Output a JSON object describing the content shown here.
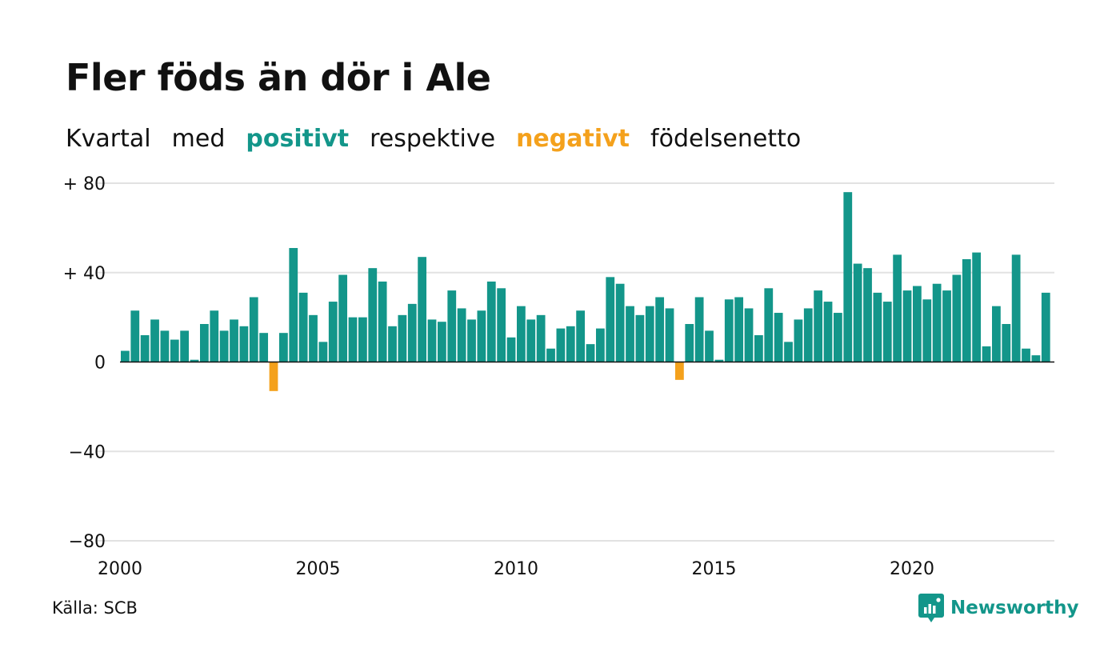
{
  "title": "Fler föds än dör i Ale",
  "subtitle": {
    "part1": "Kvartal",
    "part2": "med",
    "positive": "positivt",
    "part3": "respektive",
    "negative": "negativt",
    "part4": "födelsenetto"
  },
  "source": "Källa: SCB",
  "brand": {
    "name": "Newsworthy",
    "icon": "newsworthy-logo-icon"
  },
  "colors": {
    "positive": "#13968a",
    "negative": "#f4a11c",
    "grid": "#e2e2e2",
    "baseline": "#111111",
    "text": "#111111"
  },
  "chart_data": {
    "type": "bar",
    "x_start": 2000,
    "quarter_step": 0.25,
    "values": [
      5,
      23,
      12,
      19,
      14,
      10,
      14,
      1,
      17,
      23,
      14,
      19,
      16,
      29,
      13,
      -13,
      13,
      51,
      31,
      21,
      9,
      27,
      39,
      20,
      20,
      42,
      36,
      16,
      21,
      26,
      47,
      19,
      18,
      32,
      24,
      19,
      23,
      36,
      33,
      11,
      25,
      19,
      21,
      6,
      15,
      16,
      23,
      8,
      15,
      38,
      35,
      25,
      21,
      25,
      29,
      24,
      -8,
      17,
      29,
      14,
      1,
      28,
      29,
      24,
      12,
      33,
      22,
      9,
      19,
      24,
      32,
      27,
      22,
      76,
      44,
      42,
      31,
      27,
      48,
      32,
      34,
      28,
      35,
      32,
      39,
      46,
      49,
      7,
      25,
      17,
      48,
      6,
      3,
      31
    ],
    "ylim": [
      -80,
      80
    ],
    "y_ticks": [
      80,
      40,
      0,
      -40,
      -80
    ],
    "y_tick_labels": [
      "+ 80",
      "+ 40",
      "0",
      "−40",
      "−80"
    ],
    "x_ticks": [
      2000,
      2005,
      2010,
      2015,
      2020
    ],
    "x_tick_labels": [
      "2000",
      "2005",
      "2010",
      "2015",
      "2020"
    ],
    "grid": true,
    "legend": "in subtitle"
  }
}
